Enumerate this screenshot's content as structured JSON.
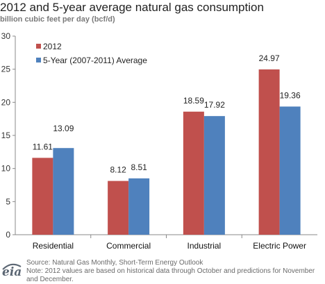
{
  "chart_data": {
    "type": "bar",
    "title": "2012 and 5-year average natural gas consumption",
    "subtitle": "billion cubic feet per day (bcf/d)",
    "categories": [
      "Residential",
      "Commercial",
      "Industrial",
      "Electric Power"
    ],
    "series": [
      {
        "name": "2012",
        "values": [
          11.61,
          8.12,
          18.59,
          24.97
        ],
        "labels": [
          "11.61",
          "8.12",
          "18.59",
          "24.97"
        ],
        "color": "#c0504d"
      },
      {
        "name": "5-Year (2007-2011)  Average",
        "values": [
          13.09,
          8.51,
          17.92,
          19.36
        ],
        "labels": [
          "13.09",
          "8.51",
          "17.92",
          "19.36"
        ],
        "color": "#4f81bd"
      }
    ],
    "ylim": [
      0,
      30
    ],
    "yticks": [
      0,
      5,
      10,
      15,
      20,
      25,
      30
    ],
    "grid": false,
    "legend_position": "top-left"
  },
  "footer": {
    "logo_text": "eia",
    "source": "Source: Natural Gas Monthly, Short-Term Energy Outlook",
    "note": "Note: 2012 values are based on historical data through October and predictions for November and December."
  }
}
